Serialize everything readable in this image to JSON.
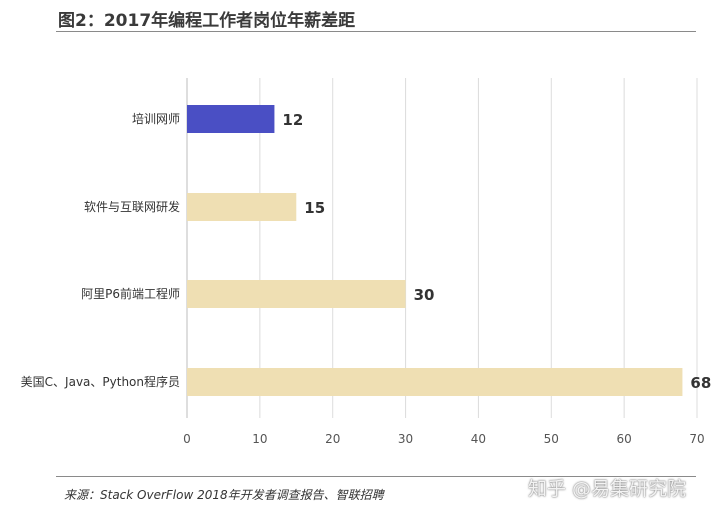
{
  "title": "图2：2017年编程工作者岗位年薪差距",
  "source": "来源：Stack OverFlow 2018年开发者调查报告、智联招聘",
  "watermark": "知乎 @易集研究院",
  "colors": {
    "highlight": "#4a4fc4",
    "bar": "#efdfb3",
    "grid": "#dcdcdc",
    "axis": "#bdbdbd"
  },
  "chart_data": {
    "type": "bar",
    "orientation": "horizontal",
    "categories": [
      "培训网师",
      "软件与互联网研发",
      "阿里P6前端工程师",
      "美国C、Java、Python程序员"
    ],
    "values": [
      12,
      15,
      30,
      68
    ],
    "data_labels": [
      "12",
      "15",
      "30",
      "68"
    ],
    "highlight_index": 0,
    "xlim": [
      0,
      70
    ],
    "xticks": [
      0,
      10,
      20,
      30,
      40,
      50,
      60,
      70
    ],
    "grid": true
  }
}
